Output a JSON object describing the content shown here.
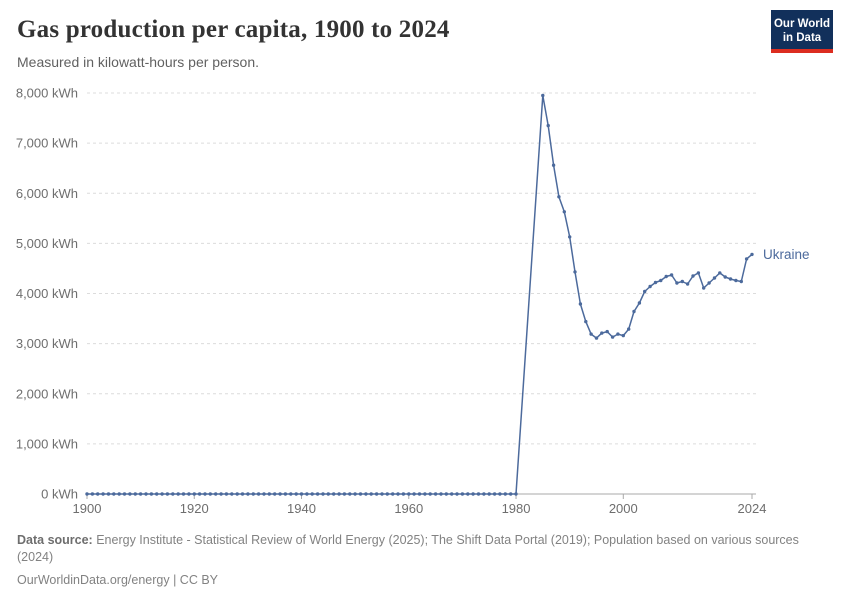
{
  "header": {
    "title": "Gas production per capita, 1900 to 2024",
    "subtitle": "Measured in kilowatt-hours per person.",
    "logo": {
      "line1": "Our World",
      "line2": "in Data",
      "bg_color": "#12305b",
      "accent_color": "#dc2d20"
    }
  },
  "chart_data": {
    "type": "line",
    "title": "Gas production per capita, 1900 to 2024",
    "subtitle": "Measured in kilowatt-hours per person.",
    "grid": "horizontal-dashed",
    "legend_position": "end-of-line-label",
    "x": {
      "min": 1900,
      "max": 2024,
      "ticks": [
        1900,
        1920,
        1940,
        1960,
        1980,
        2000,
        2024
      ]
    },
    "y": {
      "min": 0,
      "max": 8000,
      "tick_step": 1000,
      "unit": "kWh"
    },
    "style": {
      "grid_color": "#dcdcdc",
      "axis_color": "#a8a8a8",
      "tick_text_color": "#6e6e6e"
    },
    "series": [
      {
        "name": "Ukraine",
        "color": "#4c6a9c",
        "points": [
          [
            1900,
            0
          ],
          [
            1901,
            0
          ],
          [
            1902,
            0
          ],
          [
            1903,
            0
          ],
          [
            1904,
            0
          ],
          [
            1905,
            0
          ],
          [
            1906,
            0
          ],
          [
            1907,
            0
          ],
          [
            1908,
            0
          ],
          [
            1909,
            0
          ],
          [
            1910,
            0
          ],
          [
            1911,
            0
          ],
          [
            1912,
            0
          ],
          [
            1913,
            0
          ],
          [
            1914,
            0
          ],
          [
            1915,
            0
          ],
          [
            1916,
            0
          ],
          [
            1917,
            0
          ],
          [
            1918,
            0
          ],
          [
            1919,
            0
          ],
          [
            1920,
            0
          ],
          [
            1921,
            0
          ],
          [
            1922,
            0
          ],
          [
            1923,
            0
          ],
          [
            1924,
            0
          ],
          [
            1925,
            0
          ],
          [
            1926,
            0
          ],
          [
            1927,
            0
          ],
          [
            1928,
            0
          ],
          [
            1929,
            0
          ],
          [
            1930,
            0
          ],
          [
            1931,
            0
          ],
          [
            1932,
            0
          ],
          [
            1933,
            0
          ],
          [
            1934,
            0
          ],
          [
            1935,
            0
          ],
          [
            1936,
            0
          ],
          [
            1937,
            0
          ],
          [
            1938,
            0
          ],
          [
            1939,
            0
          ],
          [
            1940,
            0
          ],
          [
            1941,
            0
          ],
          [
            1942,
            0
          ],
          [
            1943,
            0
          ],
          [
            1944,
            0
          ],
          [
            1945,
            0
          ],
          [
            1946,
            0
          ],
          [
            1947,
            0
          ],
          [
            1948,
            0
          ],
          [
            1949,
            0
          ],
          [
            1950,
            0
          ],
          [
            1951,
            0
          ],
          [
            1952,
            0
          ],
          [
            1953,
            0
          ],
          [
            1954,
            0
          ],
          [
            1955,
            0
          ],
          [
            1956,
            0
          ],
          [
            1957,
            0
          ],
          [
            1958,
            0
          ],
          [
            1959,
            0
          ],
          [
            1960,
            0
          ],
          [
            1961,
            0
          ],
          [
            1962,
            0
          ],
          [
            1963,
            0
          ],
          [
            1964,
            0
          ],
          [
            1965,
            0
          ],
          [
            1966,
            0
          ],
          [
            1967,
            0
          ],
          [
            1968,
            0
          ],
          [
            1969,
            0
          ],
          [
            1970,
            0
          ],
          [
            1971,
            0
          ],
          [
            1972,
            0
          ],
          [
            1973,
            0
          ],
          [
            1974,
            0
          ],
          [
            1975,
            0
          ],
          [
            1976,
            0
          ],
          [
            1977,
            0
          ],
          [
            1978,
            0
          ],
          [
            1979,
            0
          ],
          [
            1980,
            0
          ],
          [
            1985,
            7950
          ],
          [
            1986,
            7350
          ],
          [
            1987,
            6560
          ],
          [
            1988,
            5930
          ],
          [
            1989,
            5630
          ],
          [
            1990,
            5130
          ],
          [
            1991,
            4430
          ],
          [
            1992,
            3790
          ],
          [
            1993,
            3440
          ],
          [
            1994,
            3190
          ],
          [
            1995,
            3110
          ],
          [
            1996,
            3210
          ],
          [
            1997,
            3240
          ],
          [
            1998,
            3130
          ],
          [
            1999,
            3190
          ],
          [
            2000,
            3160
          ],
          [
            2001,
            3290
          ],
          [
            2002,
            3640
          ],
          [
            2003,
            3810
          ],
          [
            2004,
            4040
          ],
          [
            2005,
            4140
          ],
          [
            2006,
            4220
          ],
          [
            2007,
            4260
          ],
          [
            2008,
            4340
          ],
          [
            2009,
            4370
          ],
          [
            2010,
            4210
          ],
          [
            2011,
            4240
          ],
          [
            2012,
            4190
          ],
          [
            2013,
            4350
          ],
          [
            2014,
            4410
          ],
          [
            2015,
            4110
          ],
          [
            2016,
            4210
          ],
          [
            2017,
            4310
          ],
          [
            2018,
            4410
          ],
          [
            2019,
            4330
          ],
          [
            2020,
            4290
          ],
          [
            2021,
            4260
          ],
          [
            2022,
            4240
          ],
          [
            2023,
            4690
          ],
          [
            2024,
            4780
          ]
        ]
      }
    ]
  },
  "footer": {
    "source_label": "Data source:",
    "source_text": " Energy Institute - Statistical Review of World Energy (2025); The Shift Data Portal (2019); Population based on various sources (2024)",
    "cc_text": "OurWorldinData.org/energy | CC BY"
  }
}
